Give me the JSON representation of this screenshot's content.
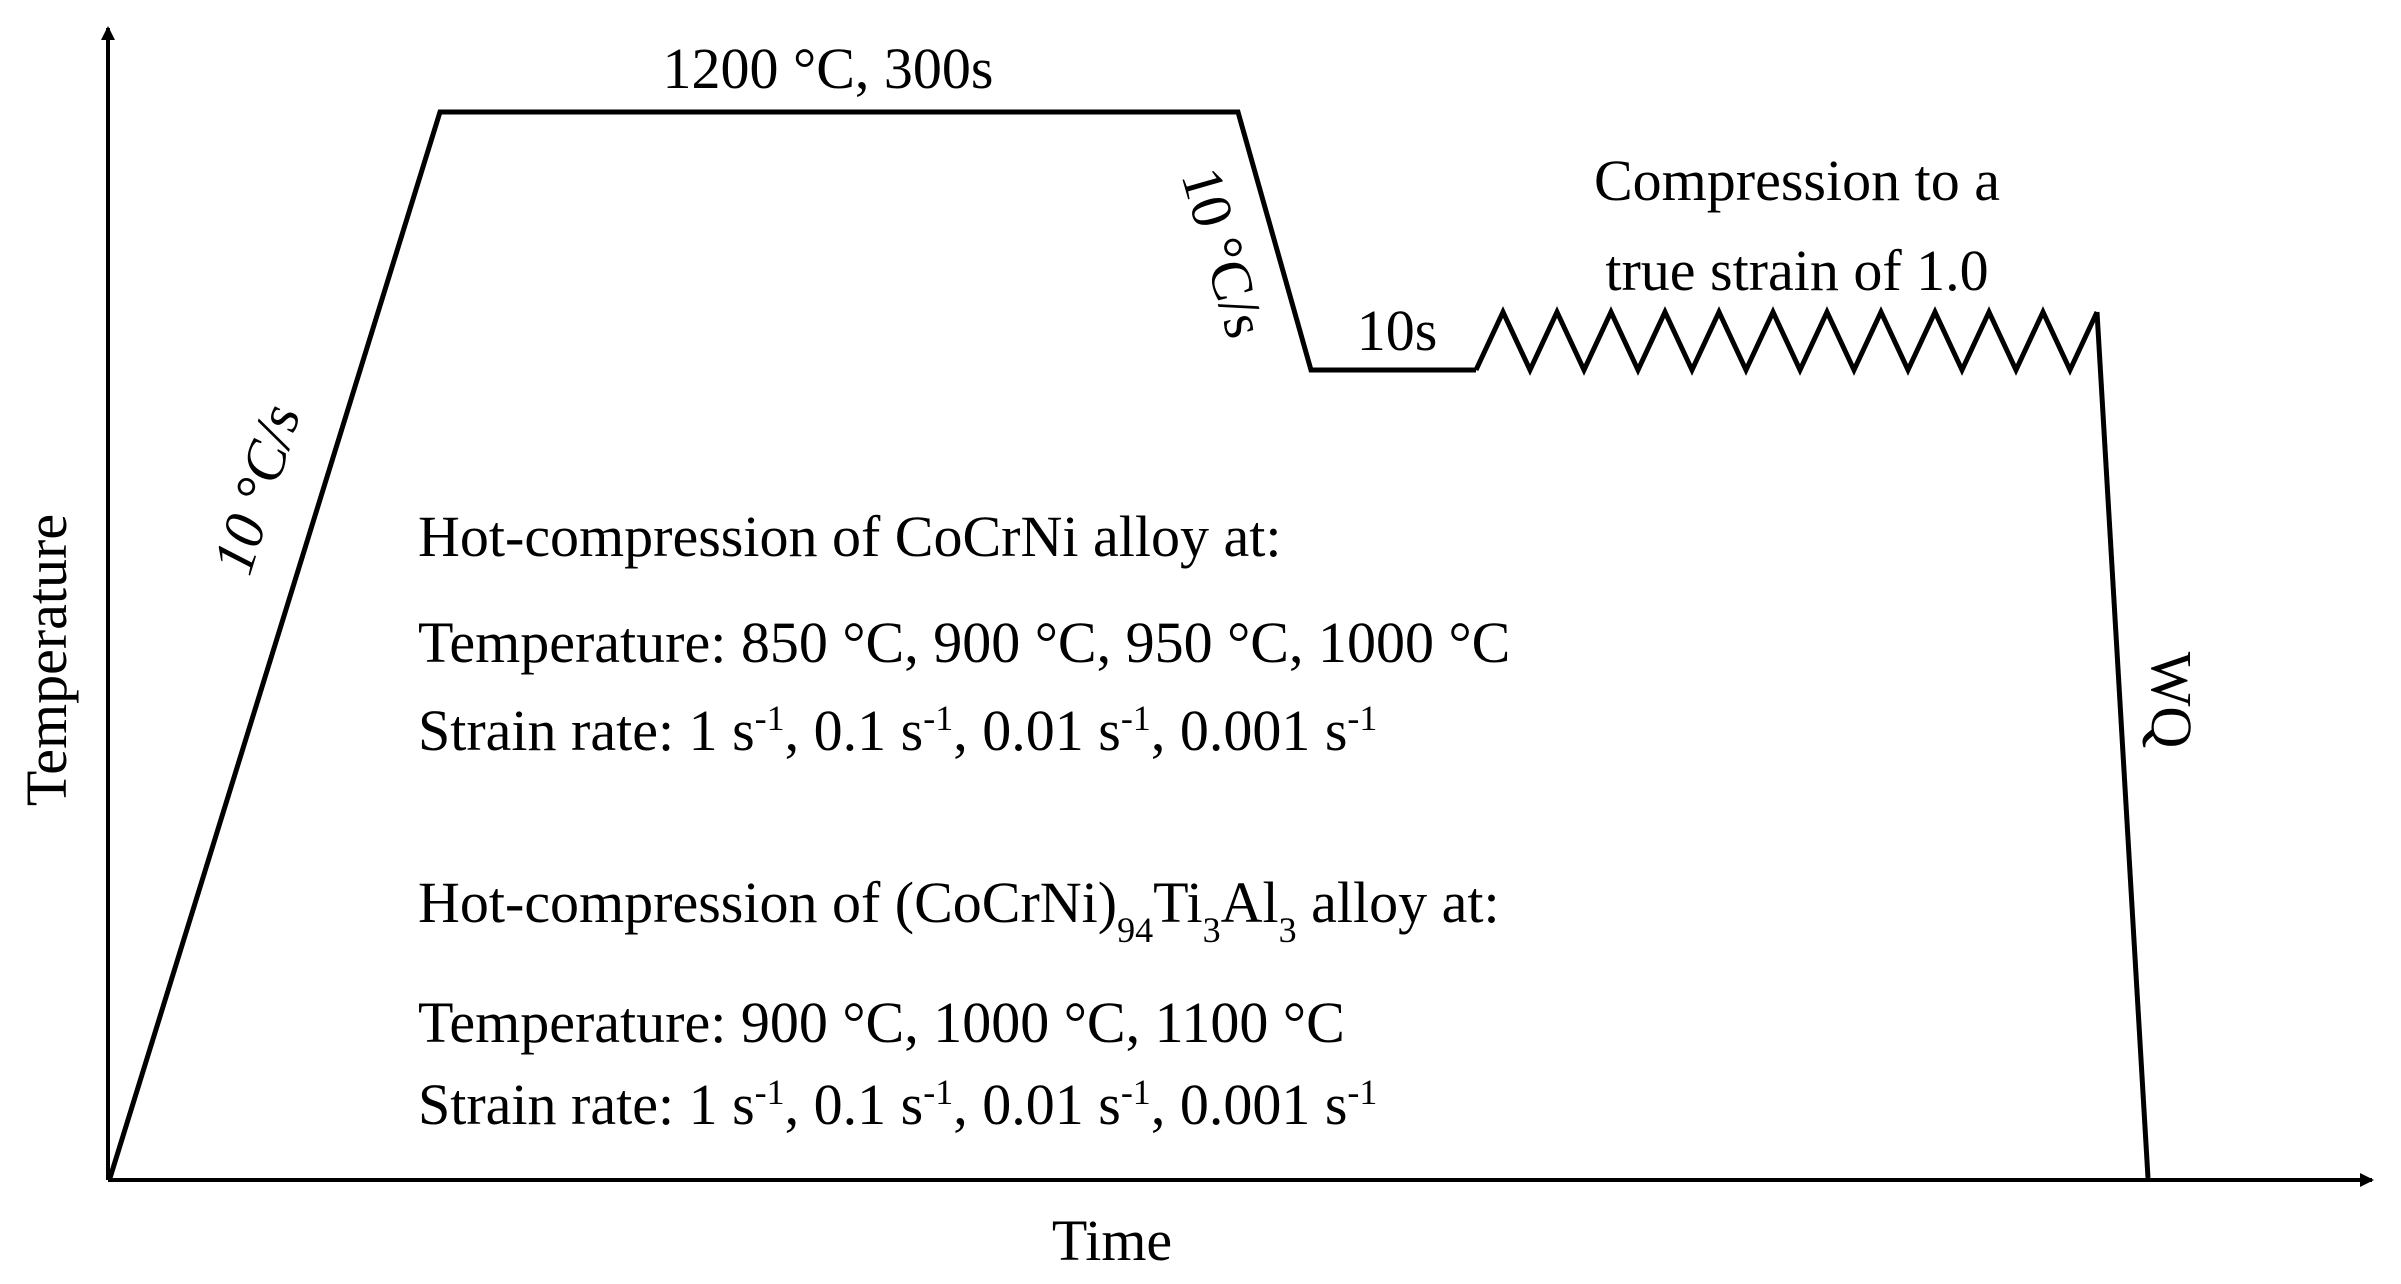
{
  "axes": {
    "x_label": "Time",
    "y_label": "Temperature"
  },
  "segments": {
    "heating_rate": "10 °C/s",
    "hold": "1200 °C, 300s",
    "cooling_rate": "10 °C/s",
    "soak": "10s",
    "quench": "WQ"
  },
  "compression": {
    "line1": "Compression to a",
    "line2": "true strain of 1.0"
  },
  "cocrni": {
    "title": "Hot-compression of CoCrNi alloy at:",
    "temperature": "Temperature: 850 °C, 900 °C, 950 °C, 1000 °C",
    "strain_rate": {
      "prefix": "Strain rate: ",
      "values": [
        "1 s",
        "0.1 s",
        "0.01 s",
        "0.001 s"
      ],
      "exponent": "-1",
      "separator": ", "
    }
  },
  "ti_al": {
    "title_prefix": "Hot-compression of (CoCrNi)",
    "sub_94": "94",
    "ti": "Ti",
    "sub_3a": "3",
    "al": "Al",
    "sub_3b": "3",
    "title_suffix": " alloy at:",
    "temperature": "Temperature: 900 °C, 1000 °C, 1100 °C",
    "strain_rate": {
      "prefix": "Strain rate: ",
      "values": [
        "1 s",
        "0.1 s",
        "0.01 s",
        "0.001 s"
      ],
      "exponent": "-1",
      "separator": ", "
    }
  }
}
